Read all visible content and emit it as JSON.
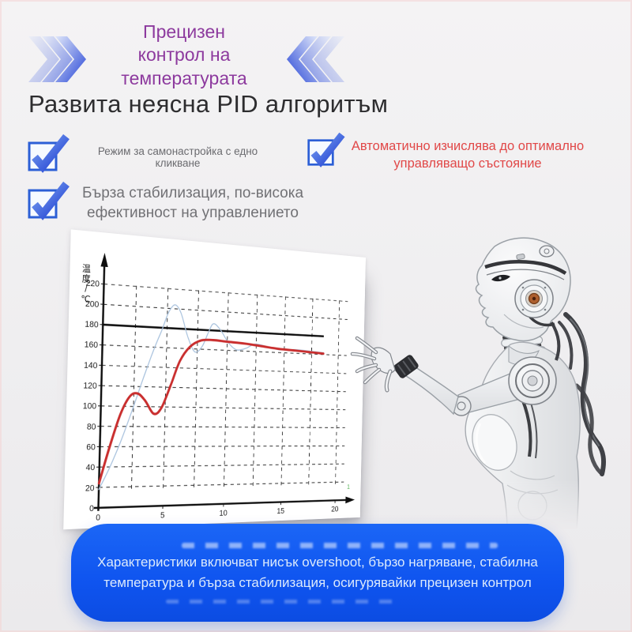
{
  "page": {
    "background": "#efeef0",
    "edge_tint": "#f4d6d6"
  },
  "header": {
    "badge_title": "Прецизен\nконтрол на\nтемпературата",
    "badge_color": "#8d3a9e",
    "heading": "Развита неясна PID алгоритъм",
    "heading_color": "#2d2d2f",
    "arrow_blue": "#2746d6"
  },
  "features": [
    {
      "icon": "checkbox-checked-icon",
      "label": "Режим за самонастройка с едно кликване",
      "color": "#6b6b6f"
    },
    {
      "icon": "checkbox-checked-icon",
      "label": "Автоматично изчислява до оптимално\nуправляващо състояние",
      "color": "#e14848"
    },
    {
      "icon": "checkbox-checked-icon",
      "label": "Бърза стабилизация, по-висока\nефективност на управлението",
      "color": "#717175"
    }
  ],
  "chart_data": {
    "type": "line",
    "title": "",
    "ylabel": "温度/℃",
    "xlabel": "",
    "xlim": [
      0,
      21
    ],
    "ylim": [
      0,
      240
    ],
    "x_ticks": [
      0,
      5,
      10,
      15,
      20
    ],
    "y_ticks": [
      0,
      20,
      40,
      60,
      80,
      100,
      120,
      140,
      160,
      180,
      200,
      220
    ],
    "grid": "dashed",
    "grid_x_step": 2.5,
    "setpoint": {
      "value": 180,
      "x_end": 18.6,
      "color": "#0e0e0e",
      "name": "setpoint-180"
    },
    "corner_mark": "1",
    "legend_position": "none",
    "series": [
      {
        "name": "conventional-PID",
        "color": "#aac3de",
        "width": 1.4,
        "x": [
          0,
          0.8,
          1.6,
          2.4,
          3.2,
          4.0,
          4.6,
          5.1,
          5.6,
          6.1,
          6.7,
          7.3,
          7.9,
          8.4,
          8.8,
          9.4,
          10.1,
          10.8,
          11.6,
          12.4,
          13.4,
          14.6,
          16.0,
          17.4,
          18.6
        ],
        "y": [
          18,
          40,
          66,
          96,
          128,
          158,
          178,
          196,
          204,
          196,
          172,
          157,
          163,
          178,
          187,
          181,
          168,
          161,
          163,
          168,
          166,
          163,
          164,
          163,
          162
        ]
      },
      {
        "name": "fuzzy-PID",
        "color": "#c92e2e",
        "width": 3.2,
        "x": [
          0,
          0.7,
          1.5,
          2.2,
          2.8,
          3.4,
          4.1,
          4.7,
          5.4,
          6.1,
          6.9,
          7.8,
          8.8,
          10,
          11.5,
          13,
          14.5,
          16,
          17.3,
          18.6
        ],
        "y": [
          24,
          58,
          92,
          110,
          113,
          106,
          93,
          99,
          122,
          147,
          162,
          169,
          170,
          169,
          168,
          166,
          164,
          163,
          162,
          161
        ]
      }
    ]
  },
  "banner": {
    "text": "Характеристики включват нисък overshoot, бързо нагряване, стабилна температура и бърза стабилизация, осигурявайки прецизен контрол",
    "bg": "#1157f1",
    "text_color": "#dceafc"
  },
  "robot": {
    "name": "humanoid-robot-pointing",
    "ear_accent": "#ad5f2e"
  }
}
